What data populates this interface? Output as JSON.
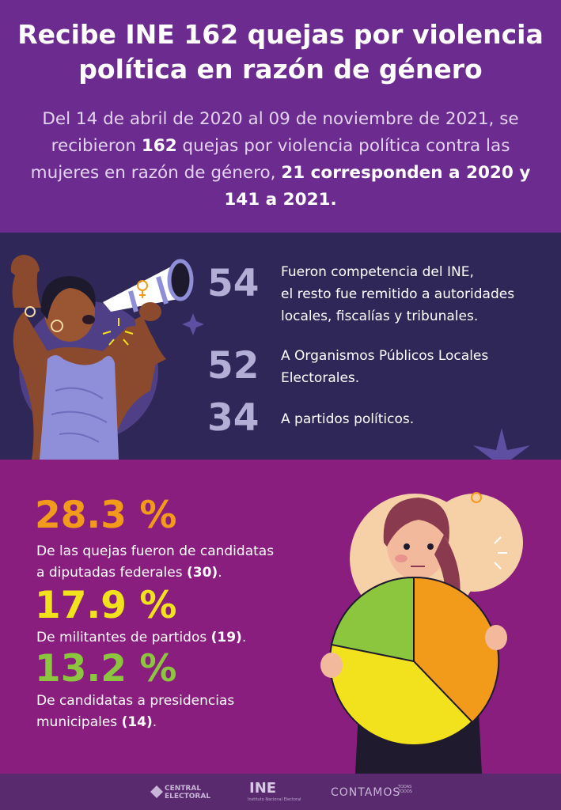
{
  "header": {
    "title_line1": "Recibe INE 162 quejas por violencia",
    "title_line2": "política en razón de género",
    "intro_part1": "Del 14 de abril de 2020 al 09 de noviembre de 2021, se recibieron ",
    "intro_bold1": "162",
    "intro_part2": " quejas por violencia política contra las mujeres en razón de género, ",
    "intro_bold2": "21 corresponden a 2020 y 141 a 2021."
  },
  "stats": [
    {
      "number": "54",
      "text_line1": "Fueron competencia del INE,",
      "text_line2": "el resto fue remitido a autoridades",
      "text_line3": "locales, fiscalías y tribunales."
    },
    {
      "number": "52",
      "text_line1": "A Organismos Públicos Locales",
      "text_line2": "Electorales."
    },
    {
      "number": "34",
      "text_line1": "A partidos políticos."
    }
  ],
  "percentages": [
    {
      "value": "28.3 %",
      "color": "#f29a1a",
      "text_line1": "De las quejas fueron de candidatas",
      "text_line2": "a diputadas federales ",
      "count": "(30)",
      "end": "."
    },
    {
      "value": "17.9 %",
      "color": "#f2e21d",
      "text_line1": "De militantes de partidos ",
      "count": "(19)",
      "end": "."
    },
    {
      "value": "13.2 %",
      "color": "#8cc63f",
      "text_line1": "De candidatas a presidencias",
      "text_line2": "municipales ",
      "count": "(14)",
      "end": "."
    }
  ],
  "footer": {
    "central_line1": "CENTRAL",
    "central_line2": "ELECTORAL",
    "ine": "INE",
    "ine_sub": "Instituto Nacional Electoral",
    "contamos": "CONTAMOS",
    "contamos_small1": "TODAS",
    "contamos_small2": "TODOS"
  },
  "colors": {
    "header_bg": "#6b2b8f",
    "mid_bg": "#2f2758",
    "low_bg": "#8a1e7e",
    "footer_bg": "#5a2a6e",
    "orange": "#f29a1a",
    "yellow": "#f2e21d",
    "green": "#8cc63f"
  },
  "icons": [
    "megaphone-icon",
    "female-symbol-icon",
    "sparkle-icon",
    "star-burst-icon",
    "pie-chart-sign-icon"
  ]
}
